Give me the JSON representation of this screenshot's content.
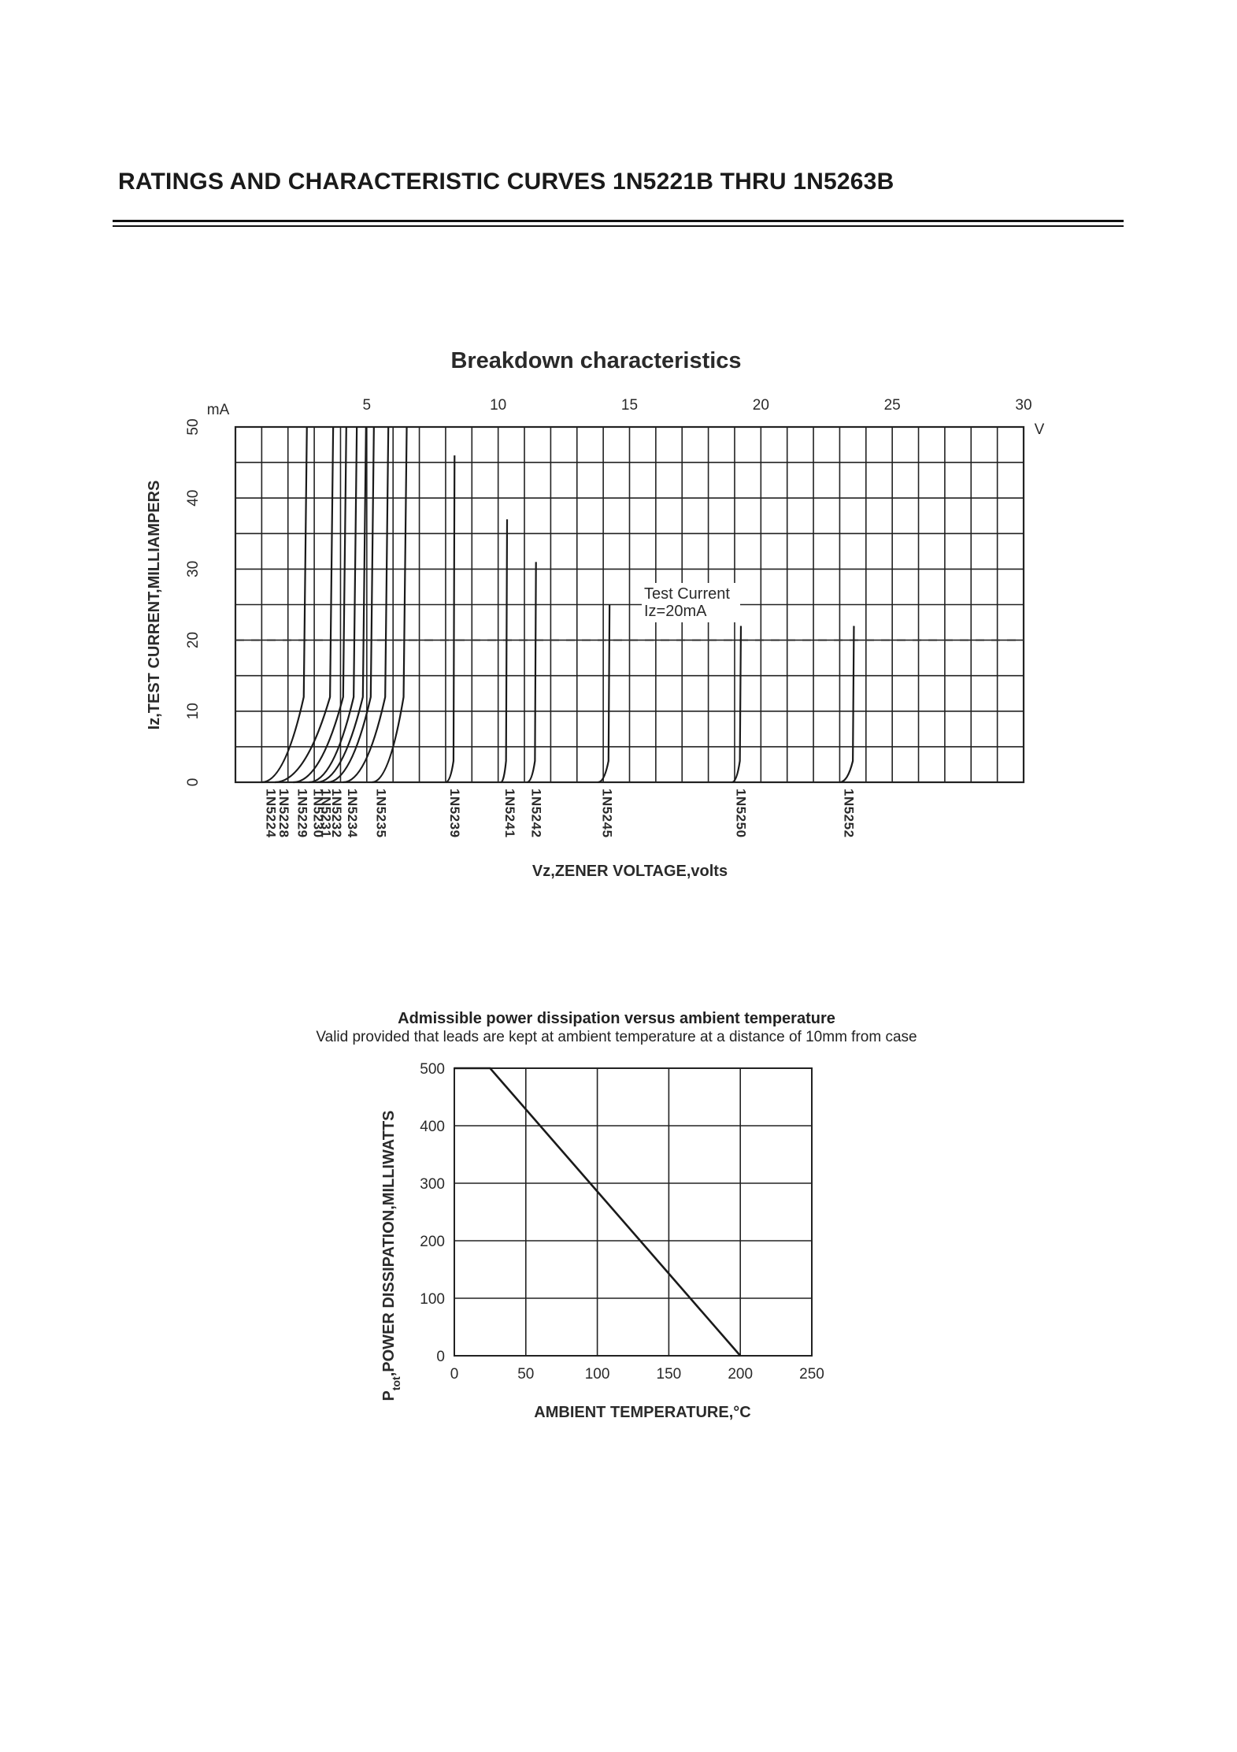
{
  "page": {
    "title": "RATINGS AND CHARACTERISTIC CURVES 1N5221B THRU 1N5263B"
  },
  "chart_data": [
    {
      "type": "line",
      "title": "Breakdown characteristics",
      "xlabel": "Vz,ZENER VOLTAGE,volts",
      "ylabel": "Iz,TEST CURRENT,MILLIAMPERS",
      "x_unit": "V",
      "y_unit": "mA",
      "xlim": [
        0,
        30
      ],
      "ylim": [
        0,
        50
      ],
      "x_ticks": [
        5,
        10,
        15,
        20,
        25,
        30
      ],
      "y_ticks": [
        0,
        10,
        20,
        30,
        40,
        50
      ],
      "grid": true,
      "test_current": {
        "label_line1": "Test Current",
        "label_line2": "Iz=20mA",
        "value": 20
      },
      "series": [
        {
          "name": "1N5224",
          "knee": 1.0,
          "vz": 2.6,
          "top": 50
        },
        {
          "name": "1N5228",
          "knee": 1.5,
          "vz": 3.6,
          "top": 50
        },
        {
          "name": "1N5229",
          "knee": 2.2,
          "vz": 4.1,
          "top": 50
        },
        {
          "name": "1N5230",
          "knee": 2.8,
          "vz": 4.5,
          "top": 50
        },
        {
          "name": "1N5231",
          "knee": 3.1,
          "vz": 4.85,
          "top": 50
        },
        {
          "name": "1N5232",
          "knee": 3.5,
          "vz": 5.15,
          "top": 50
        },
        {
          "name": "1N5234",
          "knee": 4.1,
          "vz": 5.7,
          "top": 50
        },
        {
          "name": "1N5235",
          "knee": 5.2,
          "vz": 6.4,
          "top": 50
        },
        {
          "name": "1N5239",
          "knee": 8.0,
          "vz": 8.3,
          "top": 46
        },
        {
          "name": "1N5241",
          "knee": 10.1,
          "vz": 10.3,
          "top": 37
        },
        {
          "name": "1N5242",
          "knee": 11.1,
          "vz": 11.4,
          "top": 31
        },
        {
          "name": "1N5245",
          "knee": 13.8,
          "vz": 14.2,
          "top": 25
        },
        {
          "name": "1N5250",
          "knee": 18.9,
          "vz": 19.2,
          "top": 22
        },
        {
          "name": "1N5252",
          "knee": 23.0,
          "vz": 23.5,
          "top": 22
        }
      ]
    },
    {
      "type": "line",
      "title": "Admissible power dissipation versus ambient temperature",
      "subtitle": "Valid provided that leads are kept at ambient temperature at a distance of 10mm from case",
      "xlabel": "AMBIENT TEMPERATURE,°C",
      "ylabel_main": "P",
      "ylabel_sub": "tot",
      "ylabel_rest": ",POWER DISSIPATION,MILLIWATTS",
      "xlim": [
        0,
        250
      ],
      "ylim": [
        0,
        500
      ],
      "x_ticks": [
        0,
        50,
        100,
        150,
        200,
        250
      ],
      "y_ticks": [
        0,
        100,
        200,
        300,
        400,
        500
      ],
      "grid": true,
      "series": [
        {
          "x": [
            0,
            25,
            200
          ],
          "y": [
            500,
            500,
            0
          ]
        }
      ]
    }
  ]
}
